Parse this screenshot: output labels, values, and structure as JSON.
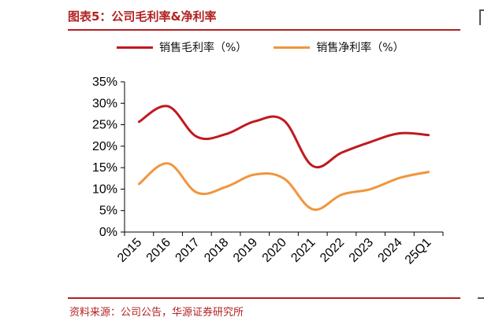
{
  "figure": {
    "title": "图表5：公司毛利率&净利率",
    "source": "资料来源：公司公告，华源证券研究所"
  },
  "colors": {
    "accent": "#b22222",
    "gross_line": "#c0191f",
    "net_line": "#f0963c"
  },
  "chart_data": {
    "type": "line",
    "title": "",
    "xlabel": "",
    "ylabel": "",
    "categories": [
      "2015",
      "2016",
      "2017",
      "2018",
      "2019",
      "2020",
      "2021",
      "2022",
      "2023",
      "2024",
      "25Q1"
    ],
    "ylim": [
      0,
      35
    ],
    "yticks": [
      "0%",
      "5%",
      "10%",
      "15%",
      "20%",
      "25%",
      "30%",
      "35%"
    ],
    "grid": false,
    "legend_position": "top",
    "series": [
      {
        "name": "销售毛利率（%）",
        "color": "#c0191f",
        "values": [
          25.7,
          29.3,
          22.2,
          22.8,
          25.8,
          26.0,
          15.4,
          18.5,
          21.0,
          23.0,
          22.6
        ]
      },
      {
        "name": "销售净利率（%）",
        "color": "#f0963c",
        "values": [
          11.2,
          16.0,
          9.2,
          10.5,
          13.4,
          12.5,
          5.3,
          8.7,
          10.0,
          12.6,
          14.0
        ]
      }
    ]
  }
}
